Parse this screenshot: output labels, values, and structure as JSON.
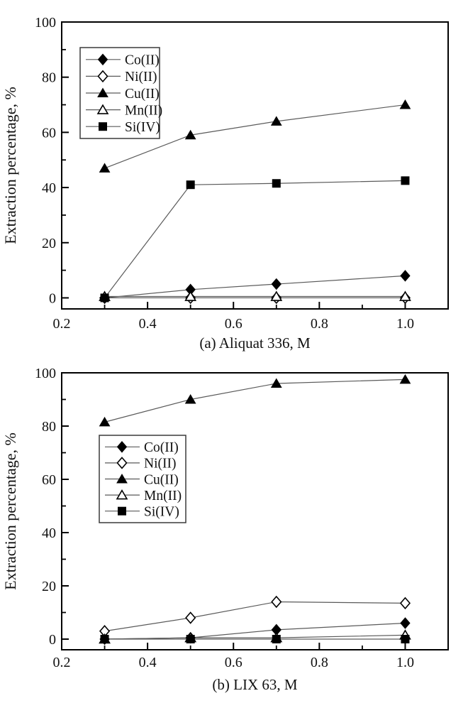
{
  "figure": {
    "background": "#ffffff",
    "axis_color": "#000000",
    "series_line_color": "#5a5a5a",
    "text_color": "#111111",
    "marker_color": "#000000"
  },
  "chart_data": [
    {
      "type": "line",
      "caption": "(a) Aliquat 336, M",
      "ylabel": "Extraction percentage, %",
      "x": [
        0.3,
        0.5,
        0.7,
        1.0
      ],
      "xlim": [
        0.2,
        1.1
      ],
      "ylim": [
        -4,
        100
      ],
      "grid": "off",
      "legend_position": "upper-left-inside",
      "xticks_major": [
        0.2,
        0.4,
        0.6,
        0.8,
        1.0
      ],
      "xtick_labels": [
        "0.2",
        "0.4",
        "0.6",
        "0.8",
        "1.0"
      ],
      "xticks_minor": [
        0.3,
        0.5,
        0.7,
        0.9
      ],
      "yticks_major": [
        0,
        20,
        40,
        60,
        80,
        100
      ],
      "ytick_labels": [
        "0",
        "20",
        "40",
        "60",
        "80",
        "100"
      ],
      "yticks_minor": [
        10,
        30,
        50,
        70,
        90
      ],
      "series": [
        {
          "name": "Co(II)",
          "marker": "filled-diamond",
          "values": [
            0,
            3,
            5,
            8
          ]
        },
        {
          "name": "Ni(II)",
          "marker": "open-diamond",
          "values": [
            0,
            0,
            0,
            0
          ]
        },
        {
          "name": "Cu(II)",
          "marker": "filled-triangle",
          "values": [
            47,
            59,
            64,
            70
          ]
        },
        {
          "name": "Mn(II)",
          "marker": "open-triangle",
          "values": [
            0.5,
            0.5,
            0.5,
            0.5
          ]
        },
        {
          "name": "Si(IV)",
          "marker": "filled-square",
          "values": [
            0,
            41,
            41.5,
            42.5
          ]
        }
      ]
    },
    {
      "type": "line",
      "caption": "(b) LIX 63, M",
      "ylabel": "Extraction percentage, %",
      "x": [
        0.3,
        0.5,
        0.7,
        1.0
      ],
      "xlim": [
        0.2,
        1.1
      ],
      "ylim": [
        -4,
        100
      ],
      "grid": "off",
      "legend_position": "upper-left-inside",
      "xticks_major": [
        0.2,
        0.4,
        0.6,
        0.8,
        1.0
      ],
      "xtick_labels": [
        "0.2",
        "0.4",
        "0.6",
        "0.8",
        "1.0"
      ],
      "xticks_minor": [
        0.3,
        0.5,
        0.7,
        0.9
      ],
      "yticks_major": [
        0,
        20,
        40,
        60,
        80,
        100
      ],
      "ytick_labels": [
        "0",
        "20",
        "40",
        "60",
        "80",
        "100"
      ],
      "yticks_minor": [
        10,
        30,
        50,
        70,
        90
      ],
      "series": [
        {
          "name": "Co(II)",
          "marker": "filled-diamond",
          "values": [
            0,
            0.5,
            3.5,
            6
          ]
        },
        {
          "name": "Ni(II)",
          "marker": "open-diamond",
          "values": [
            3,
            8,
            14,
            13.5
          ]
        },
        {
          "name": "Cu(II)",
          "marker": "filled-triangle",
          "values": [
            81.5,
            90,
            96,
            97.5
          ]
        },
        {
          "name": "Mn(II)",
          "marker": "open-triangle",
          "values": [
            0,
            0.5,
            0.5,
            1.5
          ]
        },
        {
          "name": "Si(IV)",
          "marker": "filled-square",
          "values": [
            0,
            0,
            0,
            0
          ]
        }
      ]
    }
  ]
}
